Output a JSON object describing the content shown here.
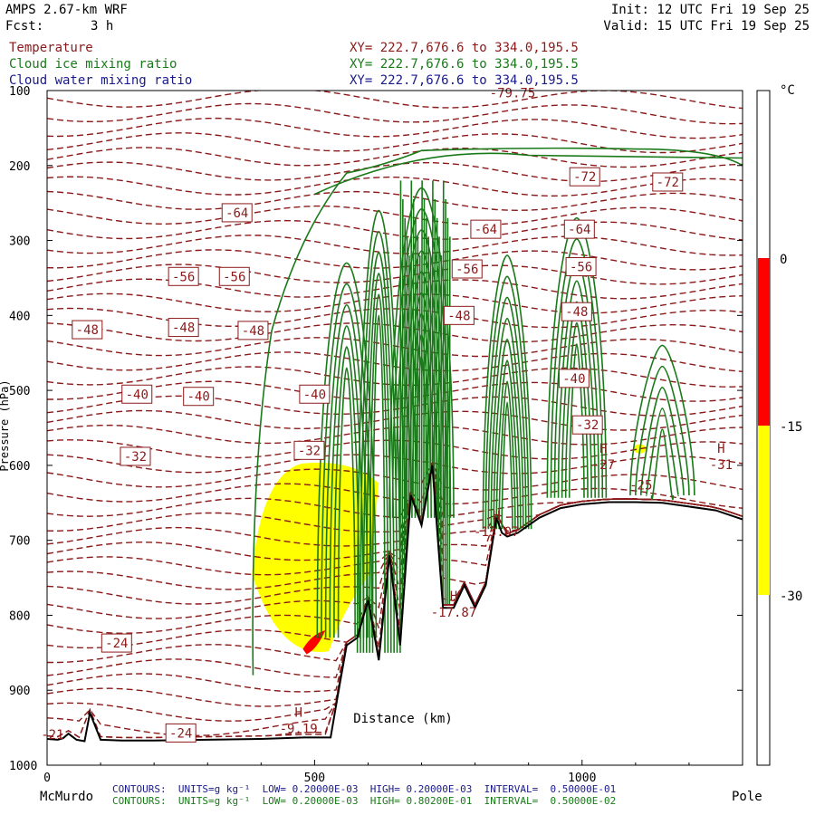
{
  "header": {
    "model": "AMPS 2.67-km WRF",
    "fcst_label": "Fcst:",
    "fcst_value": "3 h",
    "init": "Init: 12 UTC Fri 19 Sep 25",
    "valid": "Valid: 15 UTC Fri 19 Sep 25"
  },
  "colors": {
    "temperature": "#8b1a1a",
    "cloud_ice": "#1a7a1a",
    "cloud_water": "#1a1a8b",
    "terrain": "#000000",
    "fill_red": "#ff0000",
    "fill_yellow": "#ffff00"
  },
  "chart_data": {
    "type": "contour",
    "fields": [
      {
        "name": "Temperature",
        "xy": "XY= 222.7,676.6 to 334.0,195.5",
        "color": "#8b1a1a",
        "style": "dashed"
      },
      {
        "name": "Cloud ice mixing ratio",
        "xy": "XY= 222.7,676.6 to 334.0,195.5",
        "color": "#1a7a1a",
        "style": "solid"
      },
      {
        "name": "Cloud water mixing ratio",
        "xy": "XY= 222.7,676.6 to 334.0,195.5",
        "color": "#1a1a8b",
        "style": "filled"
      }
    ],
    "ylabel": "Pressure (hPa)",
    "xlabel": "Distance (km)",
    "y_ticks": [
      100,
      200,
      300,
      400,
      500,
      600,
      700,
      800,
      900,
      1000
    ],
    "ylim": [
      1000,
      100
    ],
    "x_ticks": [
      0,
      500,
      1000
    ],
    "xlim": [
      0,
      1300
    ],
    "x_endpoints": {
      "left": "McMurdo",
      "right": "Pole"
    },
    "colorbar": {
      "unit": "°C",
      "ticks": [
        0,
        -15,
        -30
      ],
      "bands": [
        {
          "from": 0,
          "to": -15,
          "color": "#ff0000"
        },
        {
          "from": -15,
          "to": -30,
          "color": "#ffff00"
        }
      ]
    },
    "temperature_labels": [
      {
        "text": "-79.75",
        "x": 870,
        "p": 103,
        "boxed": false
      },
      {
        "text": "-72",
        "x": 1005,
        "p": 215,
        "boxed": true
      },
      {
        "text": "-72",
        "x": 1160,
        "p": 222,
        "boxed": true
      },
      {
        "text": "-64",
        "x": 355,
        "p": 263,
        "boxed": true
      },
      {
        "text": "-64",
        "x": 820,
        "p": 285,
        "boxed": true
      },
      {
        "text": "-64",
        "x": 995,
        "p": 285,
        "boxed": true
      },
      {
        "text": "-56",
        "x": 255,
        "p": 348,
        "boxed": true
      },
      {
        "text": "-56",
        "x": 350,
        "p": 348,
        "boxed": true
      },
      {
        "text": "-56",
        "x": 785,
        "p": 338,
        "boxed": true
      },
      {
        "text": "-56",
        "x": 998,
        "p": 335,
        "boxed": true
      },
      {
        "text": "-48",
        "x": 75,
        "p": 419,
        "boxed": true
      },
      {
        "text": "-48",
        "x": 255,
        "p": 416,
        "boxed": true
      },
      {
        "text": "-48",
        "x": 385,
        "p": 420,
        "boxed": true
      },
      {
        "text": "-48",
        "x": 770,
        "p": 400,
        "boxed": true
      },
      {
        "text": "-48",
        "x": 990,
        "p": 395,
        "boxed": true
      },
      {
        "text": "-40",
        "x": 168,
        "p": 505,
        "boxed": true
      },
      {
        "text": "-40",
        "x": 283,
        "p": 508,
        "boxed": true
      },
      {
        "text": "-40",
        "x": 500,
        "p": 505,
        "boxed": true
      },
      {
        "text": "-40",
        "x": 985,
        "p": 484,
        "boxed": true
      },
      {
        "text": "-32",
        "x": 165,
        "p": 588,
        "boxed": true
      },
      {
        "text": "-32",
        "x": 490,
        "p": 580,
        "boxed": true
      },
      {
        "text": "-32",
        "x": 1010,
        "p": 546,
        "boxed": true
      },
      {
        "text": "-24",
        "x": 130,
        "p": 837,
        "boxed": true
      },
      {
        "text": "-24",
        "x": 250,
        "p": 957,
        "boxed": true
      }
    ],
    "extrema": [
      {
        "symbol": "H",
        "value": "-9.19",
        "x": 470,
        "p": 945
      },
      {
        "symbol": "H",
        "value": "-17.87",
        "x": 760,
        "p": 790
      },
      {
        "symbol": "H",
        "value": "-13.07",
        "x": 840,
        "p": 682
      },
      {
        "symbol": "H",
        "value": "-27",
        "x": 1040,
        "p": 593
      },
      {
        "symbol": "H",
        "value": "-31",
        "x": 1260,
        "p": 593
      },
      {
        "symbol": "",
        "value": "-21",
        "x": 10,
        "p": 953
      },
      {
        "symbol": "",
        "value": "-25",
        "x": 1110,
        "p": 620
      }
    ],
    "terrain_profile": {
      "x": [
        0,
        20,
        30,
        40,
        55,
        70,
        80,
        100,
        140,
        200,
        300,
        400,
        480,
        530,
        545,
        560,
        580,
        600,
        620,
        640,
        660,
        680,
        700,
        720,
        740,
        760,
        780,
        800,
        820,
        840,
        850,
        860,
        880,
        900,
        920,
        960,
        1000,
        1050,
        1100,
        1150,
        1200,
        1250,
        1300
      ],
      "p": [
        965,
        966,
        964,
        958,
        966,
        968,
        930,
        966,
        967,
        967,
        966,
        965,
        963,
        963,
        900,
        840,
        830,
        780,
        860,
        720,
        840,
        640,
        680,
        600,
        790,
        790,
        760,
        790,
        760,
        670,
        690,
        695,
        690,
        680,
        670,
        657,
        652,
        649,
        649,
        650,
        655,
        660,
        672
      ]
    },
    "ice_cloud_top_p": 190,
    "cloud_water_fill": {
      "x_range": [
        400,
        620
      ],
      "p_range": [
        600,
        860
      ]
    }
  },
  "footer": {
    "line1": "CONTOURS:  UNITS=g kg⁻¹  LOW= 0.20000E-03  HIGH= 0.20000E-03  INTERVAL=  0.50000E-01",
    "line2": "CONTOURS:  UNITS=g kg⁻¹  LOW= 0.20000E-03  HIGH= 0.80200E-01  INTERVAL=  0.50000E-02"
  }
}
